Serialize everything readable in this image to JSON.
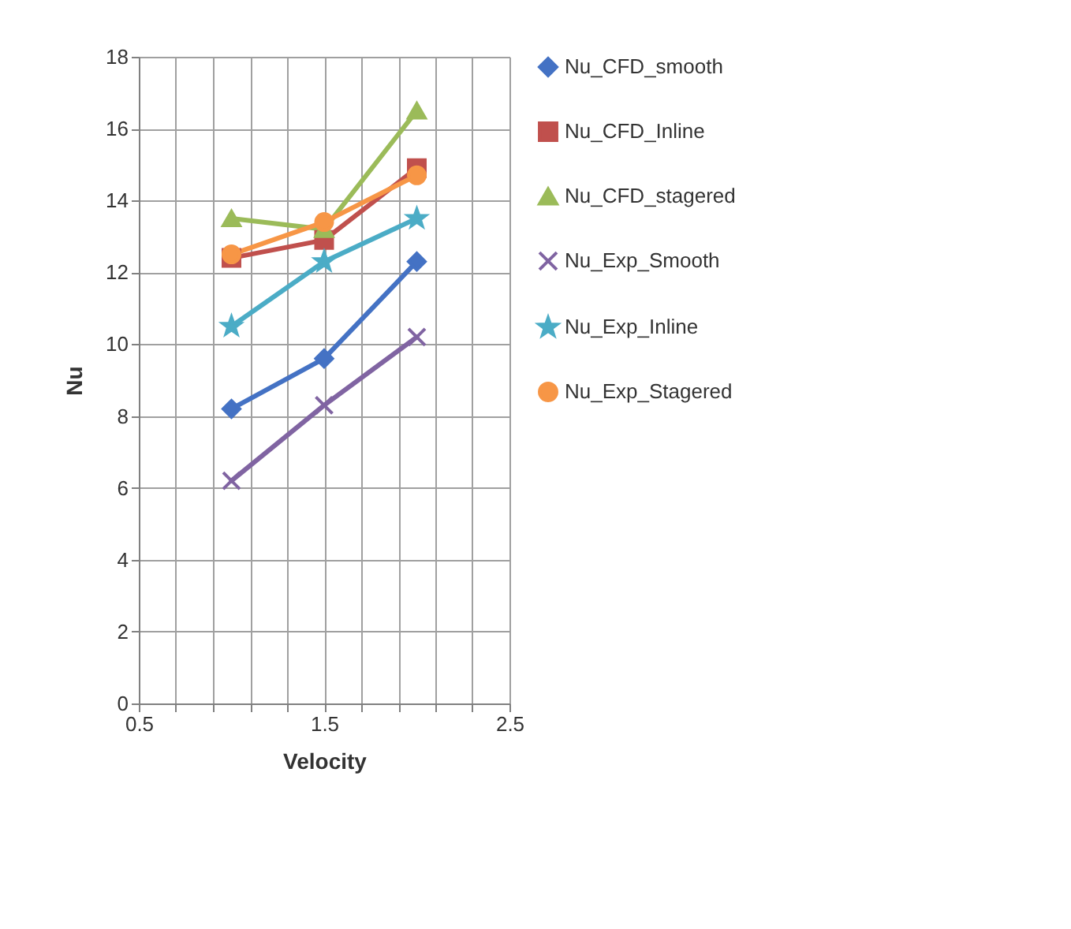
{
  "chart_data": {
    "type": "line",
    "xlabel": "Velocity",
    "ylabel": "Nu",
    "x": [
      1,
      1.5,
      2
    ],
    "series": [
      {
        "name": "Nu_CFD_smooth",
        "color": "#4472c4",
        "marker": "diamond",
        "values": [
          8.2,
          9.6,
          12.3
        ]
      },
      {
        "name": "Nu_CFD_Inline",
        "color": "#c0504d",
        "marker": "square",
        "values": [
          12.4,
          12.9,
          14.9
        ]
      },
      {
        "name": "Nu_CFD_stagered",
        "color": "#9bbb59",
        "marker": "triangle",
        "values": [
          13.5,
          13.2,
          16.5
        ]
      },
      {
        "name": "Nu_Exp_Smooth",
        "color": "#8064a2",
        "marker": "cross",
        "values": [
          6.2,
          8.3,
          10.2
        ]
      },
      {
        "name": "Nu_Exp_Inline",
        "color": "#4bacc6",
        "marker": "star",
        "values": [
          10.5,
          12.3,
          13.5
        ]
      },
      {
        "name": "Nu_Exp_Stagered",
        "color": "#f79646",
        "marker": "circle",
        "values": [
          12.5,
          13.4,
          14.7
        ]
      }
    ],
    "xlim": [
      0.5,
      2.5
    ],
    "xticks": [
      0.5,
      {
        "value": 0.7,
        "label": null
      },
      {
        "value": 0.9,
        "label": null
      },
      {
        "value": 1.1,
        "label": null
      },
      {
        "value": 1.3,
        "label": null
      },
      1.5,
      {
        "value": 1.7,
        "label": null
      },
      {
        "value": 1.9,
        "label": null
      },
      {
        "value": 2.1,
        "label": null
      },
      {
        "value": 2.3,
        "label": null
      },
      2.5
    ],
    "ylim": [
      0,
      18
    ],
    "yticks": [
      0,
      2,
      4,
      6,
      8,
      10,
      12,
      14,
      16,
      18
    ],
    "grid": true,
    "legend": "right",
    "line_style": "solid"
  }
}
